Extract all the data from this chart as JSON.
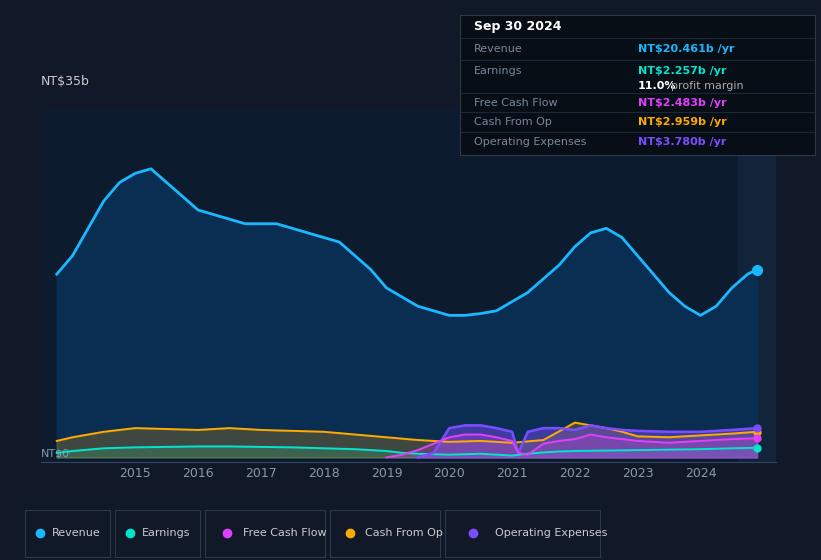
{
  "bg_color": "#111827",
  "plot_bg_color": "#0d1b2e",
  "grid_color": "#1e3350",
  "ylabel_text": "NT$35b",
  "y0_text": "NT$0",
  "xlim": [
    2013.5,
    2025.2
  ],
  "ylim": [
    -0.5,
    38
  ],
  "revenue_color": "#1ab8ff",
  "earnings_color": "#00e5cc",
  "fcf_color": "#e040fb",
  "cashfromop_color": "#ffaa00",
  "opex_color": "#7c4dff",
  "revenue_fill": "#0a2d52",
  "tooltip_bg": "#050a10",
  "tooltip_title": "Sep 30 2024",
  "tooltip_revenue_label": "Revenue",
  "tooltip_revenue_val": "NT$20.461b /yr",
  "tooltip_earnings_label": "Earnings",
  "tooltip_earnings_val": "NT$2.257b /yr",
  "tooltip_margin": "11.0% profit margin",
  "tooltip_fcf_label": "Free Cash Flow",
  "tooltip_fcf_val": "NT$2.483b /yr",
  "tooltip_cashop_label": "Cash From Op",
  "tooltip_cashop_val": "NT$2.959b /yr",
  "tooltip_opex_label": "Operating Expenses",
  "tooltip_opex_val": "NT$3.780b /yr",
  "revenue_x": [
    2013.75,
    2014.0,
    2014.25,
    2014.5,
    2014.75,
    2015.0,
    2015.25,
    2015.5,
    2015.75,
    2016.0,
    2016.25,
    2016.5,
    2016.75,
    2017.0,
    2017.25,
    2017.5,
    2017.75,
    2018.0,
    2018.25,
    2018.5,
    2018.75,
    2019.0,
    2019.25,
    2019.5,
    2019.75,
    2020.0,
    2020.25,
    2020.5,
    2020.75,
    2021.0,
    2021.25,
    2021.5,
    2021.75,
    2022.0,
    2022.25,
    2022.5,
    2022.75,
    2023.0,
    2023.25,
    2023.5,
    2023.75,
    2024.0,
    2024.25,
    2024.5,
    2024.75,
    2024.9
  ],
  "revenue_y": [
    20,
    22,
    25,
    28,
    30,
    31,
    31.5,
    30,
    28.5,
    27,
    26.5,
    26,
    25.5,
    25.5,
    25.5,
    25,
    24.5,
    24,
    23.5,
    22,
    20.5,
    18.5,
    17.5,
    16.5,
    16,
    15.5,
    15.5,
    15.7,
    16,
    17,
    18,
    19.5,
    21,
    23,
    24.5,
    25,
    24,
    22,
    20,
    18,
    16.5,
    15.5,
    16.5,
    18.5,
    20,
    20.5
  ],
  "earnings_x": [
    2013.75,
    2014.0,
    2014.5,
    2015.0,
    2015.5,
    2016.0,
    2016.5,
    2017.0,
    2017.5,
    2018.0,
    2018.5,
    2019.0,
    2019.25,
    2019.5,
    2019.75,
    2020.0,
    2020.25,
    2020.5,
    2020.75,
    2021.0,
    2021.25,
    2021.5,
    2021.75,
    2022.0,
    2022.5,
    2023.0,
    2023.5,
    2024.0,
    2024.5,
    2024.9
  ],
  "earnings_y": [
    0.5,
    0.7,
    1.0,
    1.1,
    1.15,
    1.2,
    1.2,
    1.15,
    1.1,
    1.0,
    0.9,
    0.7,
    0.5,
    0.4,
    0.35,
    0.3,
    0.35,
    0.4,
    0.3,
    0.2,
    0.4,
    0.55,
    0.65,
    0.7,
    0.75,
    0.8,
    0.85,
    0.9,
    1.0,
    1.05
  ],
  "cashop_x": [
    2013.75,
    2014.0,
    2014.5,
    2015.0,
    2015.5,
    2016.0,
    2016.5,
    2017.0,
    2017.5,
    2018.0,
    2018.5,
    2019.0,
    2019.5,
    2020.0,
    2020.5,
    2021.0,
    2021.5,
    2022.0,
    2022.25,
    2022.5,
    2022.75,
    2023.0,
    2023.5,
    2024.0,
    2024.5,
    2024.9
  ],
  "cashop_y": [
    1.8,
    2.2,
    2.8,
    3.2,
    3.1,
    3.0,
    3.2,
    3.0,
    2.9,
    2.8,
    2.5,
    2.2,
    1.9,
    1.7,
    1.8,
    1.6,
    1.9,
    3.8,
    3.5,
    3.2,
    2.8,
    2.3,
    2.2,
    2.4,
    2.6,
    2.8
  ],
  "fcf_x": [
    2019.0,
    2019.25,
    2019.5,
    2019.75,
    2020.0,
    2020.25,
    2020.5,
    2020.75,
    2021.0,
    2021.1,
    2021.25,
    2021.5,
    2021.75,
    2022.0,
    2022.25,
    2022.5,
    2022.75,
    2023.0,
    2023.5,
    2024.0,
    2024.5,
    2024.9
  ],
  "fcf_y": [
    0.0,
    0.3,
    0.8,
    1.5,
    2.2,
    2.5,
    2.5,
    2.2,
    1.8,
    0.5,
    0.3,
    1.5,
    1.8,
    2.0,
    2.5,
    2.2,
    2.0,
    1.8,
    1.6,
    1.8,
    2.0,
    2.1
  ],
  "opex_x": [
    2019.5,
    2019.75,
    2020.0,
    2020.25,
    2020.5,
    2020.75,
    2021.0,
    2021.1,
    2021.25,
    2021.5,
    2021.75,
    2022.0,
    2022.25,
    2022.5,
    2022.75,
    2023.0,
    2023.5,
    2024.0,
    2024.5,
    2024.9
  ],
  "opex_y": [
    0.0,
    0.5,
    3.2,
    3.5,
    3.5,
    3.2,
    2.8,
    0.5,
    2.8,
    3.2,
    3.2,
    3.0,
    3.5,
    3.2,
    3.0,
    2.9,
    2.8,
    2.8,
    3.0,
    3.2
  ],
  "legend_items": [
    {
      "label": "Revenue",
      "color": "#1ab8ff"
    },
    {
      "label": "Earnings",
      "color": "#00e5cc"
    },
    {
      "label": "Free Cash Flow",
      "color": "#e040fb"
    },
    {
      "label": "Cash From Op",
      "color": "#ffaa00"
    },
    {
      "label": "Operating Expenses",
      "color": "#7c4dff"
    }
  ]
}
